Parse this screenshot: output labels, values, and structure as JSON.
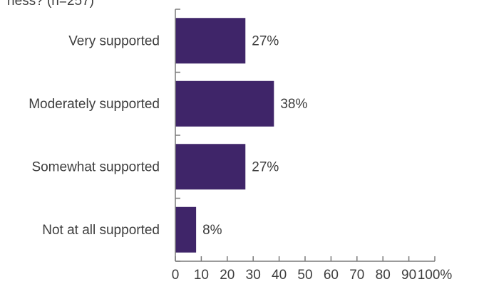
{
  "chart_data": {
    "type": "bar",
    "orientation": "horizontal",
    "title": "ness? (n=257)",
    "xlabel": "",
    "ylabel": "",
    "categories": [
      "Very supported",
      "Moderately supported",
      "Somewhat supported",
      "Not at all supported"
    ],
    "values": [
      27,
      38,
      27,
      8
    ],
    "value_labels": [
      "27%",
      "38%",
      "27%",
      "8%"
    ],
    "x_ticks": [
      "0",
      "10",
      "20",
      "30",
      "40",
      "50",
      "60",
      "70",
      "80",
      "90",
      "100%"
    ],
    "xlim": [
      0,
      100
    ],
    "grid": false,
    "bar_color": "#3f2569"
  }
}
